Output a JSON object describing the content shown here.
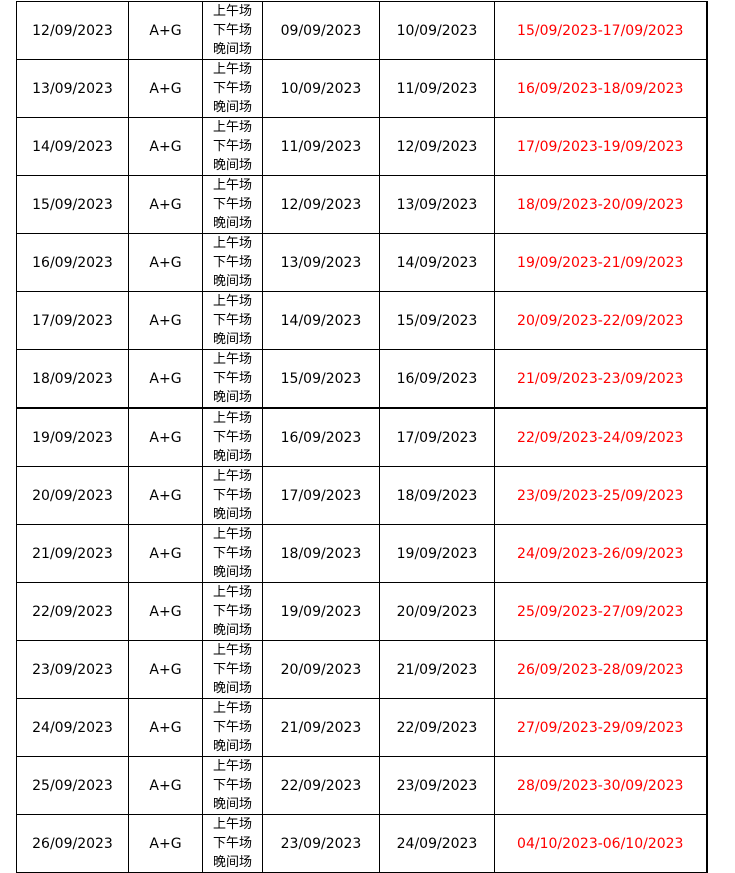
{
  "rows": [
    {
      "date": "12/09/2023",
      "type": "A+G",
      "sessions": [
        "上午场",
        "下午场",
        "晚间场"
      ],
      "d1": "09/09/2023",
      "d2": "10/09/2023",
      "range": "15/09/2023-17/09/2023"
    },
    {
      "date": "13/09/2023",
      "type": "A+G",
      "sessions": [
        "上午场",
        "下午场",
        "晚间场"
      ],
      "d1": "10/09/2023",
      "d2": "11/09/2023",
      "range": "16/09/2023-18/09/2023"
    },
    {
      "date": "14/09/2023",
      "type": "A+G",
      "sessions": [
        "上午场",
        "下午场",
        "晚间场"
      ],
      "d1": "11/09/2023",
      "d2": "12/09/2023",
      "range": "17/09/2023-19/09/2023"
    },
    {
      "date": "15/09/2023",
      "type": "A+G",
      "sessions": [
        "上午场",
        "下午场",
        "晚间场"
      ],
      "d1": "12/09/2023",
      "d2": "13/09/2023",
      "range": "18/09/2023-20/09/2023"
    },
    {
      "date": "16/09/2023",
      "type": "A+G",
      "sessions": [
        "上午场",
        "下午场",
        "晚间场"
      ],
      "d1": "13/09/2023",
      "d2": "14/09/2023",
      "range": "19/09/2023-21/09/2023"
    },
    {
      "date": "17/09/2023",
      "type": "A+G",
      "sessions": [
        "上午场",
        "下午场",
        "晚间场"
      ],
      "d1": "14/09/2023",
      "d2": "15/09/2023",
      "range": "20/09/2023-22/09/2023"
    },
    {
      "date": "18/09/2023",
      "type": "A+G",
      "sessions": [
        "上午场",
        "下午场",
        "晚间场"
      ],
      "d1": "15/09/2023",
      "d2": "16/09/2023",
      "range": "21/09/2023-23/09/2023"
    },
    {
      "date": "19/09/2023",
      "type": "A+G",
      "sessions": [
        "上午场",
        "下午场",
        "晚间场"
      ],
      "d1": "16/09/2023",
      "d2": "17/09/2023",
      "range": "22/09/2023-24/09/2023"
    },
    {
      "date": "20/09/2023",
      "type": "A+G",
      "sessions": [
        "上午场",
        "下午场",
        "晚间场"
      ],
      "d1": "17/09/2023",
      "d2": "18/09/2023",
      "range": "23/09/2023-25/09/2023"
    },
    {
      "date": "21/09/2023",
      "type": "A+G",
      "sessions": [
        "上午场",
        "下午场",
        "晚间场"
      ],
      "d1": "18/09/2023",
      "d2": "19/09/2023",
      "range": "24/09/2023-26/09/2023"
    },
    {
      "date": "22/09/2023",
      "type": "A+G",
      "sessions": [
        "上午场",
        "下午场",
        "晚间场"
      ],
      "d1": "19/09/2023",
      "d2": "20/09/2023",
      "range": "25/09/2023-27/09/2023"
    },
    {
      "date": "23/09/2023",
      "type": "A+G",
      "sessions": [
        "上午场",
        "下午场",
        "晚间场"
      ],
      "d1": "20/09/2023",
      "d2": "21/09/2023",
      "range": "26/09/2023-28/09/2023"
    },
    {
      "date": "24/09/2023",
      "type": "A+G",
      "sessions": [
        "上午场",
        "下午场",
        "晚间场"
      ],
      "d1": "21/09/2023",
      "d2": "22/09/2023",
      "range": "27/09/2023-29/09/2023"
    },
    {
      "date": "25/09/2023",
      "type": "A+G",
      "sessions": [
        "上午场",
        "下午场",
        "晚间场"
      ],
      "d1": "22/09/2023",
      "d2": "23/09/2023",
      "range": "28/09/2023-30/09/2023"
    },
    {
      "date": "26/09/2023",
      "type": "A+G",
      "sessions": [
        "上午场",
        "下午场",
        "晚间场"
      ],
      "d1": "23/09/2023",
      "d2": "24/09/2023",
      "range": "04/10/2023-06/10/2023"
    }
  ],
  "colors": {
    "range_text": "#ff0000",
    "text": "#000000",
    "border": "#000000"
  }
}
